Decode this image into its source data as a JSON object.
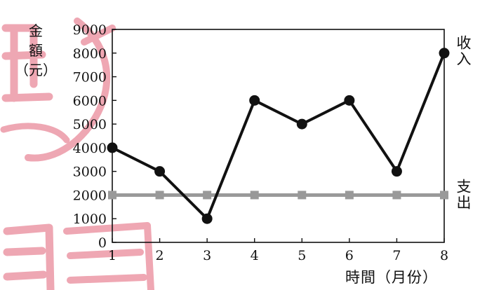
{
  "chart_data": {
    "type": "line",
    "title": "",
    "xlabel": "時間（月份）",
    "ylabel": "金額（元）",
    "x": [
      1,
      2,
      3,
      4,
      5,
      6,
      7,
      8
    ],
    "yticks": [
      0,
      1000,
      2000,
      3000,
      4000,
      5000,
      6000,
      7000,
      8000,
      9000
    ],
    "ylim": [
      0,
      9000
    ],
    "xlim": [
      1,
      8
    ],
    "grid": false,
    "series": [
      {
        "name": "收入",
        "values": [
          4000,
          3000,
          1000,
          6000,
          5000,
          6000,
          3000,
          8000
        ],
        "color": "#111111",
        "marker": "circle"
      },
      {
        "name": "支出",
        "values": [
          2000,
          2000,
          2000,
          2000,
          2000,
          2000,
          2000,
          2000
        ],
        "color": "#999999",
        "marker": "square"
      }
    ],
    "ylabel_lines": [
      "金",
      "額",
      "（元）"
    ]
  },
  "watermark_color": "#e98a9a"
}
